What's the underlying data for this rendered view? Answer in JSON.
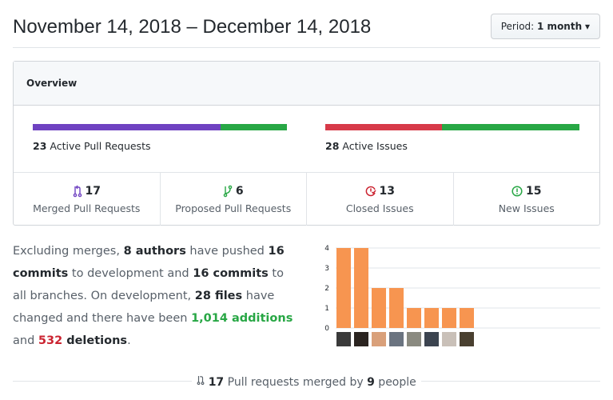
{
  "header": {
    "title": "November 14, 2018 – December 14, 2018",
    "period_label": "Period:",
    "period_value": "1 month"
  },
  "overview": {
    "title": "Overview",
    "pull_requests": {
      "count": "23",
      "label": "Active Pull Requests",
      "merged_fraction": 0.74,
      "colors": [
        "#6f42c1",
        "#28a745"
      ]
    },
    "issues": {
      "count": "28",
      "label": "Active Issues",
      "closed_fraction": 0.46,
      "colors": [
        "#d73a49",
        "#28a745"
      ]
    },
    "stats": [
      {
        "icon": "git-merge-icon",
        "value": "17",
        "label": "Merged Pull Requests",
        "color": "#6f42c1"
      },
      {
        "icon": "git-pull-request-icon",
        "value": "6",
        "label": "Proposed Pull Requests",
        "color": "#28a745"
      },
      {
        "icon": "issue-closed-icon",
        "value": "13",
        "label": "Closed Issues",
        "color": "#cb2431"
      },
      {
        "icon": "issue-opened-icon",
        "value": "15",
        "label": "New Issues",
        "color": "#28a745"
      }
    ]
  },
  "summary": {
    "t1": "Excluding merges, ",
    "authors": "8 authors",
    "t2": " have pushed ",
    "commits_dev": "16 commits",
    "t3": " to development and ",
    "commits_all": "16 commits",
    "t4": " to all branches. On development, ",
    "files": "28 files",
    "t5": " have changed and there have been ",
    "additions": "1,014 additions",
    "t6": " and ",
    "deletions": "532 deletions",
    "t7": "."
  },
  "chart_data": {
    "type": "bar",
    "values": [
      4,
      4,
      2,
      2,
      1,
      1,
      1,
      1
    ],
    "ylim": [
      0,
      4
    ],
    "yticks": [
      "0",
      "1",
      "2",
      "3",
      "4"
    ],
    "grid": true,
    "bar_color": "#f79550"
  },
  "footer": {
    "count": "17",
    "t1": " Pull requests merged by ",
    "people": "9",
    "t2": " people"
  }
}
